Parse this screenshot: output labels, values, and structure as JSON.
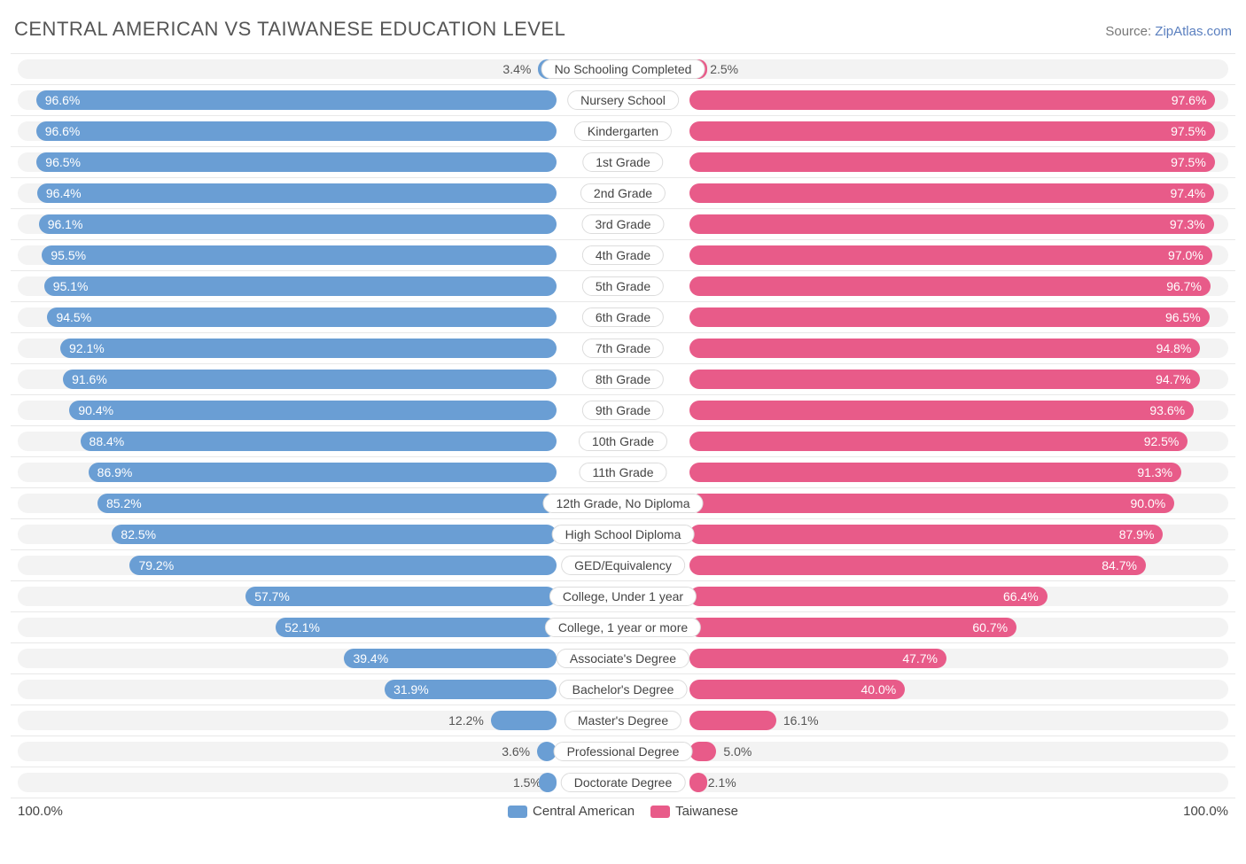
{
  "title": "CENTRAL AMERICAN VS TAIWANESE EDUCATION LEVEL",
  "source_prefix": "Source: ",
  "source_link": "ZipAtlas.com",
  "colors": {
    "series_a": "#6a9ed4",
    "series_b": "#e85b89",
    "track": "#f3f3f3",
    "border": "#e8e8e8",
    "text_dark": "#444444",
    "text_light": "#ffffff"
  },
  "axis": {
    "left": "100.0%",
    "right": "100.0%",
    "max": 100.0
  },
  "legend": [
    {
      "label": "Central American",
      "color": "#6a9ed4"
    },
    {
      "label": "Taiwanese",
      "color": "#e85b89"
    }
  ],
  "label_inside_threshold": 20.0,
  "rows": [
    {
      "category": "No Schooling Completed",
      "a": 3.4,
      "b": 2.5
    },
    {
      "category": "Nursery School",
      "a": 96.6,
      "b": 97.6
    },
    {
      "category": "Kindergarten",
      "a": 96.6,
      "b": 97.5
    },
    {
      "category": "1st Grade",
      "a": 96.5,
      "b": 97.5
    },
    {
      "category": "2nd Grade",
      "a": 96.4,
      "b": 97.4
    },
    {
      "category": "3rd Grade",
      "a": 96.1,
      "b": 97.3
    },
    {
      "category": "4th Grade",
      "a": 95.5,
      "b": 97.0
    },
    {
      "category": "5th Grade",
      "a": 95.1,
      "b": 96.7
    },
    {
      "category": "6th Grade",
      "a": 94.5,
      "b": 96.5
    },
    {
      "category": "7th Grade",
      "a": 92.1,
      "b": 94.8
    },
    {
      "category": "8th Grade",
      "a": 91.6,
      "b": 94.7
    },
    {
      "category": "9th Grade",
      "a": 90.4,
      "b": 93.6
    },
    {
      "category": "10th Grade",
      "a": 88.4,
      "b": 92.5
    },
    {
      "category": "11th Grade",
      "a": 86.9,
      "b": 91.3
    },
    {
      "category": "12th Grade, No Diploma",
      "a": 85.2,
      "b": 90.0
    },
    {
      "category": "High School Diploma",
      "a": 82.5,
      "b": 87.9
    },
    {
      "category": "GED/Equivalency",
      "a": 79.2,
      "b": 84.7
    },
    {
      "category": "College, Under 1 year",
      "a": 57.7,
      "b": 66.4
    },
    {
      "category": "College, 1 year or more",
      "a": 52.1,
      "b": 60.7
    },
    {
      "category": "Associate's Degree",
      "a": 39.4,
      "b": 47.7
    },
    {
      "category": "Bachelor's Degree",
      "a": 31.9,
      "b": 40.0
    },
    {
      "category": "Master's Degree",
      "a": 12.2,
      "b": 16.1
    },
    {
      "category": "Professional Degree",
      "a": 3.6,
      "b": 5.0
    },
    {
      "category": "Doctorate Degree",
      "a": 1.5,
      "b": 2.1
    }
  ]
}
